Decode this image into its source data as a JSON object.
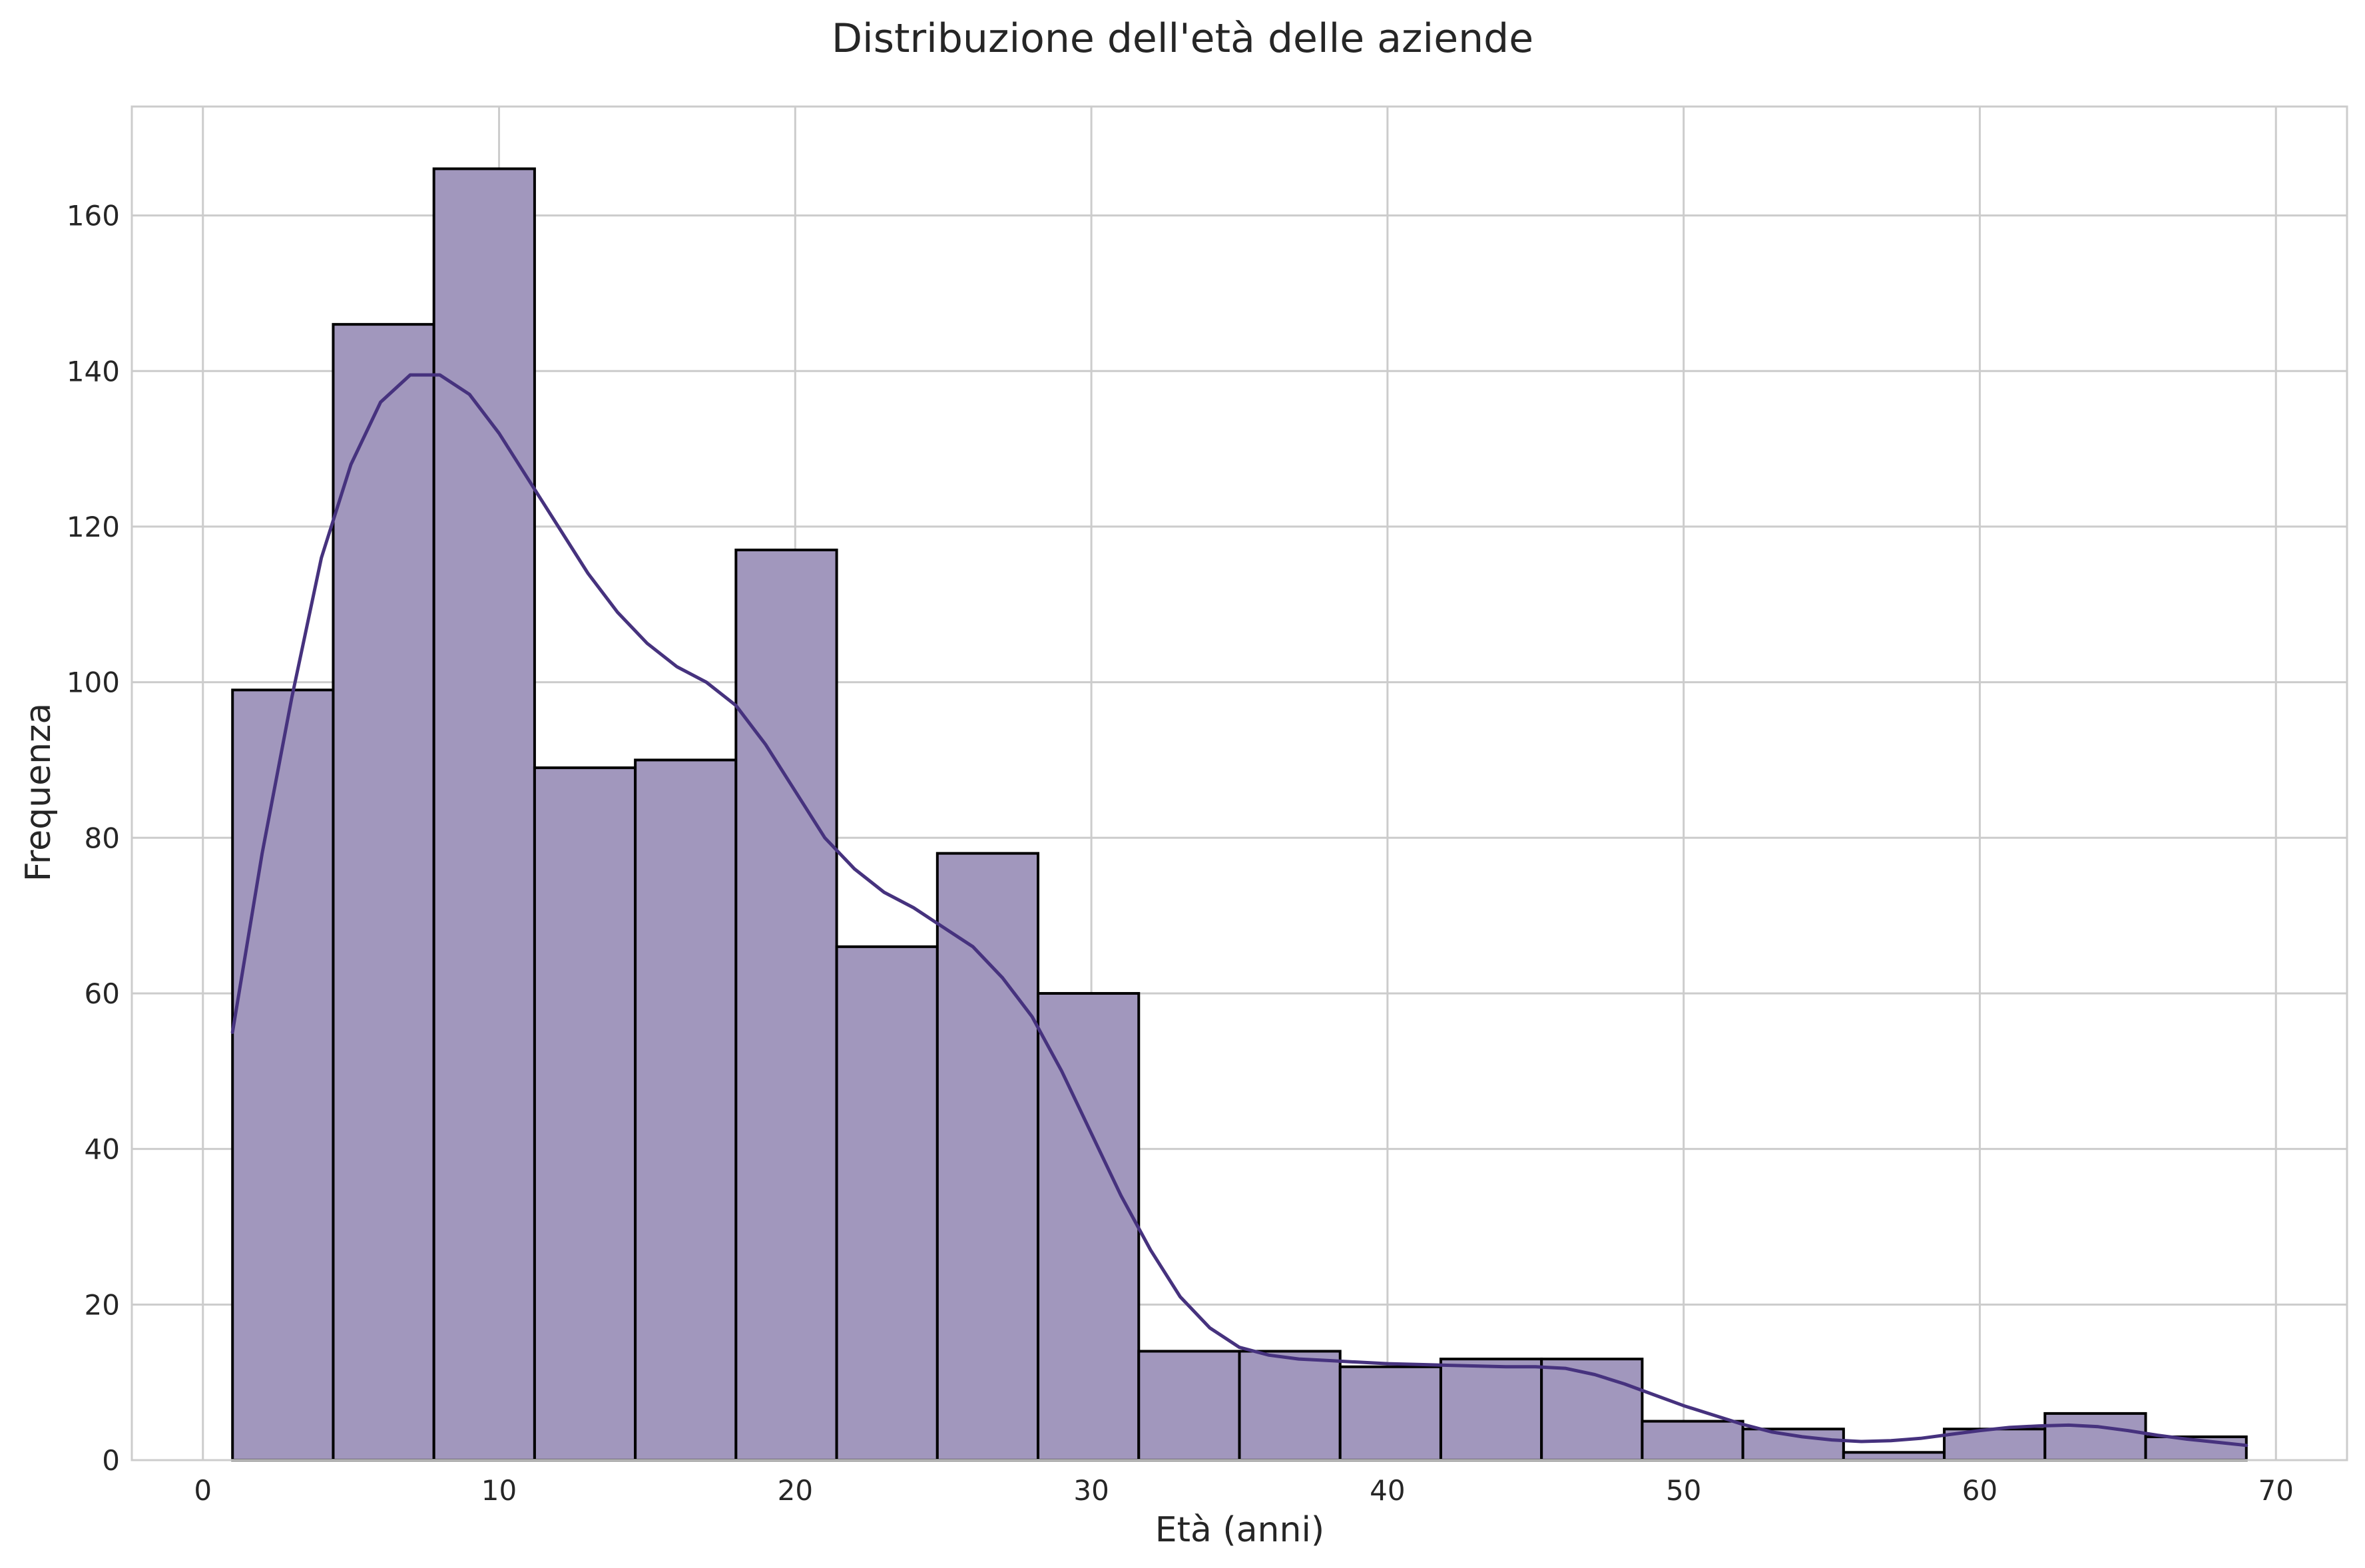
{
  "chart_data": {
    "type": "bar",
    "title": "Distribuzione dell'età delle aziende",
    "xlabel": "Età (anni)",
    "ylabel": "Frequenza",
    "xlim": [
      -2.4,
      72.4
    ],
    "ylim": [
      0,
      174
    ],
    "xticks": [
      0,
      10,
      20,
      30,
      40,
      50,
      60,
      70
    ],
    "yticks": [
      0,
      20,
      40,
      60,
      80,
      100,
      120,
      140,
      160
    ],
    "grid": true,
    "legend": "none",
    "bins": [
      {
        "x0": 1.0,
        "x1": 4.4,
        "count": 99
      },
      {
        "x0": 4.4,
        "x1": 7.8,
        "count": 146
      },
      {
        "x0": 7.8,
        "x1": 11.2,
        "count": 166
      },
      {
        "x0": 11.2,
        "x1": 14.6,
        "count": 89
      },
      {
        "x0": 14.6,
        "x1": 18.0,
        "count": 90
      },
      {
        "x0": 18.0,
        "x1": 21.4,
        "count": 117
      },
      {
        "x0": 21.4,
        "x1": 24.8,
        "count": 66
      },
      {
        "x0": 24.8,
        "x1": 28.2,
        "count": 78
      },
      {
        "x0": 28.2,
        "x1": 31.6,
        "count": 60
      },
      {
        "x0": 31.6,
        "x1": 35.0,
        "count": 14
      },
      {
        "x0": 35.0,
        "x1": 38.4,
        "count": 14
      },
      {
        "x0": 38.4,
        "x1": 41.8,
        "count": 12
      },
      {
        "x0": 41.8,
        "x1": 45.2,
        "count": 13
      },
      {
        "x0": 45.2,
        "x1": 48.6,
        "count": 13
      },
      {
        "x0": 48.6,
        "x1": 52.0,
        "count": 5
      },
      {
        "x0": 52.0,
        "x1": 55.4,
        "count": 4
      },
      {
        "x0": 55.4,
        "x1": 58.8,
        "count": 1
      },
      {
        "x0": 58.8,
        "x1": 62.2,
        "count": 4
      },
      {
        "x0": 62.2,
        "x1": 65.6,
        "count": 6
      },
      {
        "x0": 65.6,
        "x1": 69.0,
        "count": 3
      }
    ],
    "kde": {
      "x": [
        1,
        2,
        3,
        4,
        5,
        6,
        7,
        8,
        9,
        10,
        11,
        12,
        13,
        14,
        15,
        16,
        17,
        18,
        19,
        20,
        21,
        22,
        23,
        24,
        25,
        26,
        27,
        28,
        29,
        30,
        31,
        32,
        33,
        34,
        35,
        36,
        37,
        38,
        39,
        40,
        41,
        42,
        43,
        44,
        45,
        46,
        47,
        48,
        49,
        50,
        51,
        52,
        53,
        54,
        55,
        56,
        57,
        58,
        59,
        60,
        61,
        62,
        63,
        64,
        65,
        66,
        67,
        68,
        69
      ],
      "y": [
        55,
        78,
        98,
        116,
        128,
        136,
        139.5,
        139.5,
        137,
        132,
        126,
        120,
        114,
        109,
        105,
        102,
        100,
        97,
        92,
        86,
        80,
        76,
        73,
        71,
        68.5,
        66,
        62,
        57,
        50,
        42,
        34,
        27,
        21,
        17,
        14.5,
        13.5,
        13,
        12.8,
        12.6,
        12.4,
        12.3,
        12.2,
        12.1,
        12.0,
        12.0,
        11.8,
        11.0,
        9.8,
        8.4,
        7.0,
        5.8,
        4.6,
        3.6,
        3.0,
        2.6,
        2.4,
        2.5,
        2.8,
        3.3,
        3.8,
        4.2,
        4.4,
        4.5,
        4.3,
        3.8,
        3.2,
        2.7,
        2.3,
        1.9
      ]
    },
    "colors": {
      "bar_fill": "#a197bd",
      "kde_line": "#46327e"
    }
  }
}
